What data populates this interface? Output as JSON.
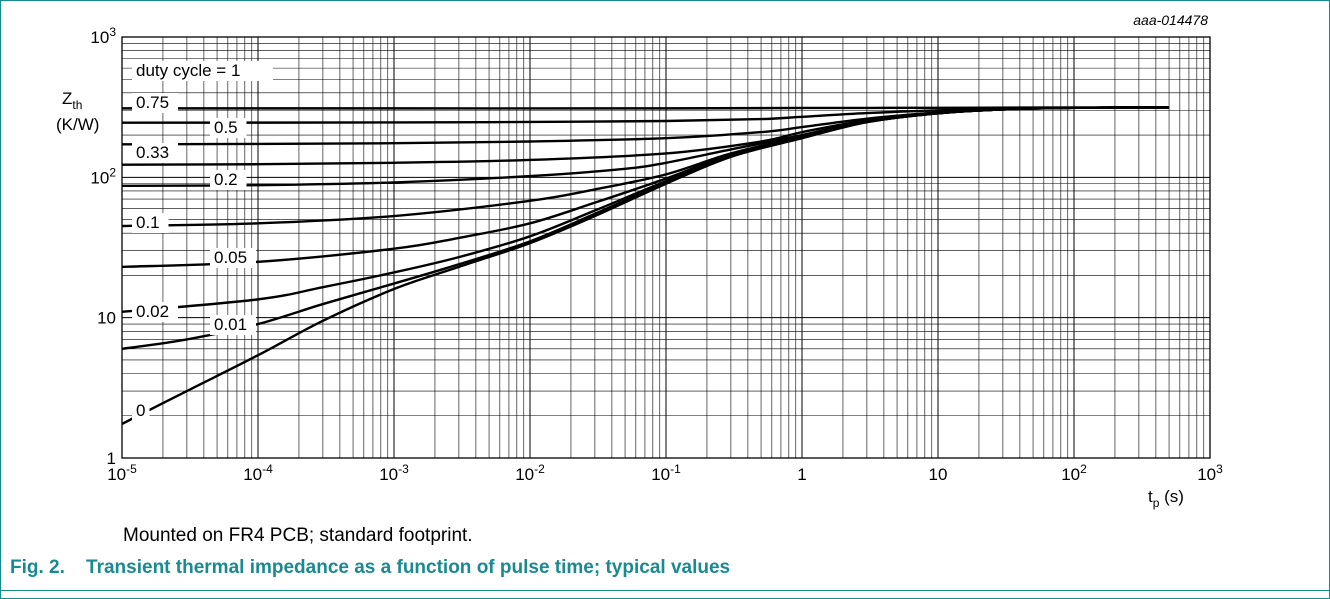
{
  "figure": {
    "label": "Fig. 2.",
    "caption": "Transient thermal impedance as a function of pulse time; typical values",
    "note": "Mounted on FR4 PCB; standard footprint.",
    "reference_code": "aaa-014478"
  },
  "colors": {
    "accent": "#1a8a91",
    "curve": "#000000",
    "grid": "#000000"
  },
  "chart_data": {
    "type": "line",
    "xscale": "log",
    "yscale": "log",
    "xlim": [
      1e-05,
      1000
    ],
    "ylim": [
      1,
      1000
    ],
    "grid": true,
    "ylabel_main": "Z",
    "ylabel_sub": "th",
    "ylabel_unit": "(K/W)",
    "xlabel_main": "t",
    "xlabel_sub": "p",
    "xlabel_unit": " (s)",
    "xticks": [
      {
        "value": 1e-05,
        "base": "10",
        "exp": "-5"
      },
      {
        "value": 0.0001,
        "base": "10",
        "exp": "-4"
      },
      {
        "value": 0.001,
        "base": "10",
        "exp": "-3"
      },
      {
        "value": 0.01,
        "base": "10",
        "exp": "-2"
      },
      {
        "value": 0.1,
        "base": "10",
        "exp": "-1"
      },
      {
        "value": 1,
        "base": "1",
        "exp": ""
      },
      {
        "value": 10,
        "base": "10",
        "exp": ""
      },
      {
        "value": 100,
        "base": "10",
        "exp": "2"
      },
      {
        "value": 1000,
        "base": "10",
        "exp": "3"
      }
    ],
    "yticks": [
      {
        "value": 1,
        "base": "1",
        "exp": ""
      },
      {
        "value": 10,
        "base": "10",
        "exp": ""
      },
      {
        "value": 100,
        "base": "10",
        "exp": "2"
      },
      {
        "value": 1000,
        "base": "10",
        "exp": "3"
      }
    ],
    "series": [
      {
        "name": "duty cycle = 1",
        "x": [
          1e-05,
          0.001,
          0.1,
          1,
          10,
          100,
          500
        ],
        "y": [
          310,
          310,
          310,
          312,
          313,
          315,
          315
        ]
      },
      {
        "name": "0.75",
        "x": [
          1e-05,
          0.001,
          0.01,
          0.1,
          0.5,
          1,
          3,
          10,
          30,
          100,
          500
        ],
        "y": [
          245,
          246,
          248,
          252,
          260,
          270,
          287,
          300,
          308,
          313,
          315
        ]
      },
      {
        "name": "0.5",
        "x": [
          1e-05,
          0.0001,
          0.001,
          0.01,
          0.1,
          0.5,
          1,
          3,
          10,
          30,
          100,
          500
        ],
        "y": [
          172,
          173,
          175,
          180,
          190,
          210,
          228,
          262,
          290,
          305,
          313,
          315
        ]
      },
      {
        "name": "0.33",
        "x": [
          1e-05,
          0.0001,
          0.001,
          0.01,
          0.1,
          0.5,
          1,
          3,
          10,
          30,
          100,
          500
        ],
        "y": [
          123,
          124,
          127,
          133,
          148,
          180,
          210,
          255,
          288,
          305,
          313,
          315
        ]
      },
      {
        "name": "0.2",
        "x": [
          1e-05,
          0.0001,
          0.001,
          0.01,
          0.05,
          0.1,
          0.3,
          1,
          3,
          10,
          30,
          100,
          500
        ],
        "y": [
          87,
          88,
          92,
          102,
          115,
          127,
          158,
          200,
          252,
          287,
          305,
          313,
          315
        ]
      },
      {
        "name": "0.1",
        "x": [
          1e-05,
          0.0001,
          0.001,
          0.01,
          0.03,
          0.1,
          0.3,
          1,
          3,
          10,
          30,
          100,
          500
        ],
        "y": [
          45,
          47,
          53,
          68,
          82,
          105,
          148,
          196,
          250,
          287,
          305,
          313,
          315
        ]
      },
      {
        "name": "0.05",
        "x": [
          1e-05,
          0.0001,
          0.001,
          0.003,
          0.01,
          0.03,
          0.1,
          0.3,
          1,
          3,
          10,
          30,
          100,
          500
        ],
        "y": [
          23,
          25,
          31,
          37,
          47,
          66,
          98,
          145,
          195,
          249,
          286,
          305,
          313,
          315
        ]
      },
      {
        "name": "0.02",
        "x": [
          1e-05,
          0.0001,
          0.0003,
          0.001,
          0.003,
          0.01,
          0.03,
          0.1,
          0.3,
          1,
          3,
          10,
          30,
          100,
          500
        ],
        "y": [
          11,
          13.5,
          16.5,
          21,
          27,
          38,
          58,
          94,
          142,
          193,
          248,
          286,
          305,
          313,
          315
        ]
      },
      {
        "name": "0.01",
        "x": [
          1e-05,
          3e-05,
          0.0001,
          0.0003,
          0.001,
          0.003,
          0.01,
          0.03,
          0.1,
          0.3,
          1,
          3,
          10,
          30,
          100,
          500
        ],
        "y": [
          6,
          7,
          9,
          12.5,
          17.5,
          24,
          35,
          55,
          92,
          141,
          192,
          248,
          286,
          305,
          313,
          315
        ]
      },
      {
        "name": "0",
        "x": [
          1e-05,
          3e-05,
          0.0001,
          0.0003,
          0.001,
          0.003,
          0.01,
          0.03,
          0.1,
          0.3,
          1,
          3,
          10,
          30,
          100,
          500
        ],
        "y": [
          1.75,
          3,
          5.4,
          9.5,
          16,
          23,
          34,
          53,
          90,
          140,
          190,
          247,
          286,
          305,
          313,
          315
        ]
      }
    ],
    "labels": [
      {
        "series": "duty cycle = 1",
        "text": "duty cycle = 1"
      },
      {
        "series": "0.75",
        "text": "0.75"
      },
      {
        "series": "0.5",
        "text": "0.5"
      },
      {
        "series": "0.33",
        "text": "0.33"
      },
      {
        "series": "0.2",
        "text": "0.2"
      },
      {
        "series": "0.1",
        "text": "0.1"
      },
      {
        "series": "0.05",
        "text": "0.05"
      },
      {
        "series": "0.02",
        "text": "0.02"
      },
      {
        "series": "0.01",
        "text": "0.01"
      },
      {
        "series": "0",
        "text": "0"
      }
    ]
  }
}
